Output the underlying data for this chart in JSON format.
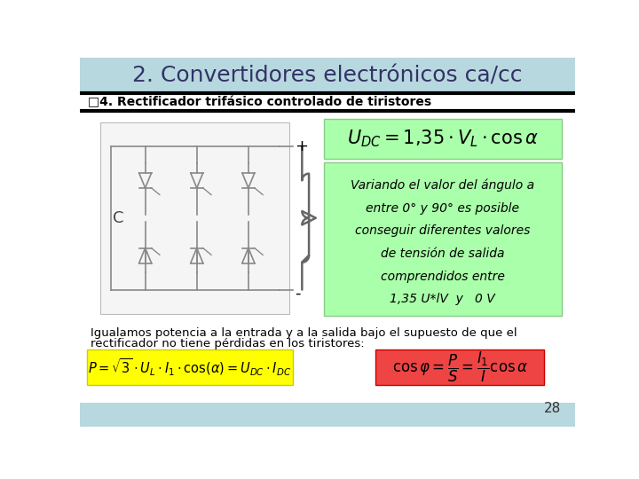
{
  "title": "2. Convertidores electrónicos ca/cc",
  "subtitle": "□4. Rectificador trifásico controlado de tiristores",
  "bg_top_color": "#b8d8e0",
  "bg_bottom_color": "#c0dde8",
  "title_color": "#333366",
  "subtitle_color": "#000000",
  "green_box_color": "#aaffaa",
  "yellow_box_color": "#ffff00",
  "red_box_color": "#ee4444",
  "desc_text_line1": "Variando el valor del ángulo a",
  "desc_text_line2": "entre 0° y 90° es posible",
  "desc_text_line3": "conseguir diferentes valores",
  "desc_text_line4": "de tensión de salida",
  "desc_text_line5": "comprendidos entre",
  "desc_text_line6": "1,35 U*lV  y   0 V",
  "body_text_line1": "Igualamos potencia a la entrada y a la salida bajo el supuesto de que el",
  "body_text_line2": "rectificador no tiene pérdidas en los tiristores:",
  "page_number": "28",
  "circuit_label_C": "C",
  "circuit_label_plus": "+",
  "circuit_label_minus": "-"
}
